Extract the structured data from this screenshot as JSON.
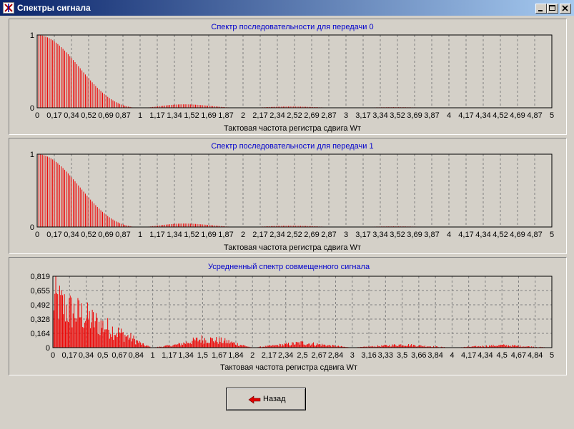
{
  "window": {
    "title": "Спектры сигнала",
    "controls": [
      "minimize",
      "maximize",
      "close"
    ]
  },
  "colors": {
    "bar": "#ee0000",
    "title": "#0000cc",
    "grid": "#808080"
  },
  "charts": [
    {
      "id": "spectrum-0",
      "title": "Спектр  последовательности для передачи 0",
      "xlabel": "Тактовая частота регистра сдвига Wт",
      "y_ticks": [
        "1",
        "0"
      ],
      "x_ticks": [
        "0",
        "0,17",
        "0,34",
        "0,52",
        "0,69",
        "0,87",
        "1",
        "1,17",
        "1,34",
        "1,52",
        "1,69",
        "1,87",
        "2",
        "2,17",
        "2,34",
        "2,52",
        "2,69",
        "2,87",
        "3",
        "3,17",
        "3,34",
        "3,52",
        "3,69",
        "3,87",
        "4",
        "4,17",
        "4,34",
        "4,52",
        "4,69",
        "4,87",
        "5"
      ]
    },
    {
      "id": "spectrum-1",
      "title": "Спектр последовательности для передачи 1",
      "xlabel": "Тактовая частота регистра сдвига Wт",
      "y_ticks": [
        "1",
        "0"
      ],
      "x_ticks": [
        "0",
        "0,17",
        "0,34",
        "0,52",
        "0,69",
        "0,87",
        "1",
        "1,17",
        "1,34",
        "1,52",
        "1,69",
        "1,87",
        "2",
        "2,17",
        "2,34",
        "2,52",
        "2,69",
        "2,87",
        "3",
        "3,17",
        "3,34",
        "3,52",
        "3,69",
        "3,87",
        "4",
        "4,17",
        "4,34",
        "4,52",
        "4,69",
        "4,87",
        "5"
      ]
    },
    {
      "id": "spectrum-avg",
      "title": "Усредненный спектр совмещенного сигнала",
      "xlabel": "Тактовая частота регистра сдвига Wт",
      "y_ticks": [
        "0,819",
        "0,655",
        "0,492",
        "0,328",
        "0,164",
        "0"
      ],
      "x_ticks": [
        "0",
        "0,17",
        "0,34",
        "0,5",
        "0,67",
        "0,84",
        "1",
        "1,17",
        "1,34",
        "1,5",
        "1,67",
        "1,84",
        "2",
        "2,17",
        "2,34",
        "2,5",
        "2,67",
        "2,84",
        "3",
        "3,16",
        "3,33",
        "3,5",
        "3,66",
        "3,84",
        "4",
        "4,17",
        "4,34",
        "4,5",
        "4,67",
        "4,84",
        "5"
      ]
    }
  ],
  "chart_data": [
    {
      "type": "bar",
      "title": "Спектр  последовательности для передачи 0",
      "xlabel": "Тактовая частота регистра сдвига Wт",
      "ylabel": "",
      "xlim": [
        0,
        5
      ],
      "ylim": [
        0,
        1
      ],
      "function": "sinc^2",
      "x_samples": [
        0,
        0.25,
        0.5,
        0.75,
        1,
        1.25,
        1.5,
        1.75,
        2,
        2.5,
        3,
        3.5,
        4,
        4.5,
        5
      ],
      "values": [
        1,
        0.81,
        0.41,
        0.09,
        0,
        0.03,
        0.045,
        0.017,
        0,
        0.016,
        0,
        0.008,
        0,
        0.005,
        0
      ],
      "grid": true
    },
    {
      "type": "bar",
      "title": "Спектр последовательности для передачи 1",
      "xlabel": "Тактовая частота регистра сдвига Wт",
      "ylabel": "",
      "xlim": [
        0,
        5
      ],
      "ylim": [
        0,
        1
      ],
      "function": "sinc^2",
      "x_samples": [
        0,
        0.25,
        0.5,
        0.75,
        1,
        1.25,
        1.5,
        1.75,
        2,
        2.5,
        3,
        3.5,
        4,
        4.5,
        5
      ],
      "values": [
        1,
        0.81,
        0.41,
        0.09,
        0,
        0.03,
        0.045,
        0.017,
        0,
        0.016,
        0,
        0.008,
        0,
        0.005,
        0
      ],
      "grid": true
    },
    {
      "type": "bar",
      "title": "Усредненный спектр совмещенного сигнала",
      "xlabel": "Тактовая частота регистра сдвига Wт",
      "ylabel": "",
      "xlim": [
        0,
        5
      ],
      "ylim": [
        0,
        0.819
      ],
      "x_samples": [
        0,
        0.1,
        0.2,
        0.3,
        0.4,
        0.5,
        0.6,
        0.7,
        0.8,
        0.9,
        1,
        1.25,
        1.5,
        1.75,
        2,
        2.5,
        3,
        3.5,
        4,
        4.5,
        5
      ],
      "values": [
        0.82,
        0.7,
        0.6,
        0.55,
        0.45,
        0.37,
        0.3,
        0.22,
        0.15,
        0.05,
        0,
        0.05,
        0.15,
        0.1,
        0,
        0.08,
        0,
        0.05,
        0,
        0.04,
        0
      ],
      "grid": true
    }
  ],
  "back_button": {
    "label": "Назад",
    "icon": "red-left-arrow-icon"
  }
}
